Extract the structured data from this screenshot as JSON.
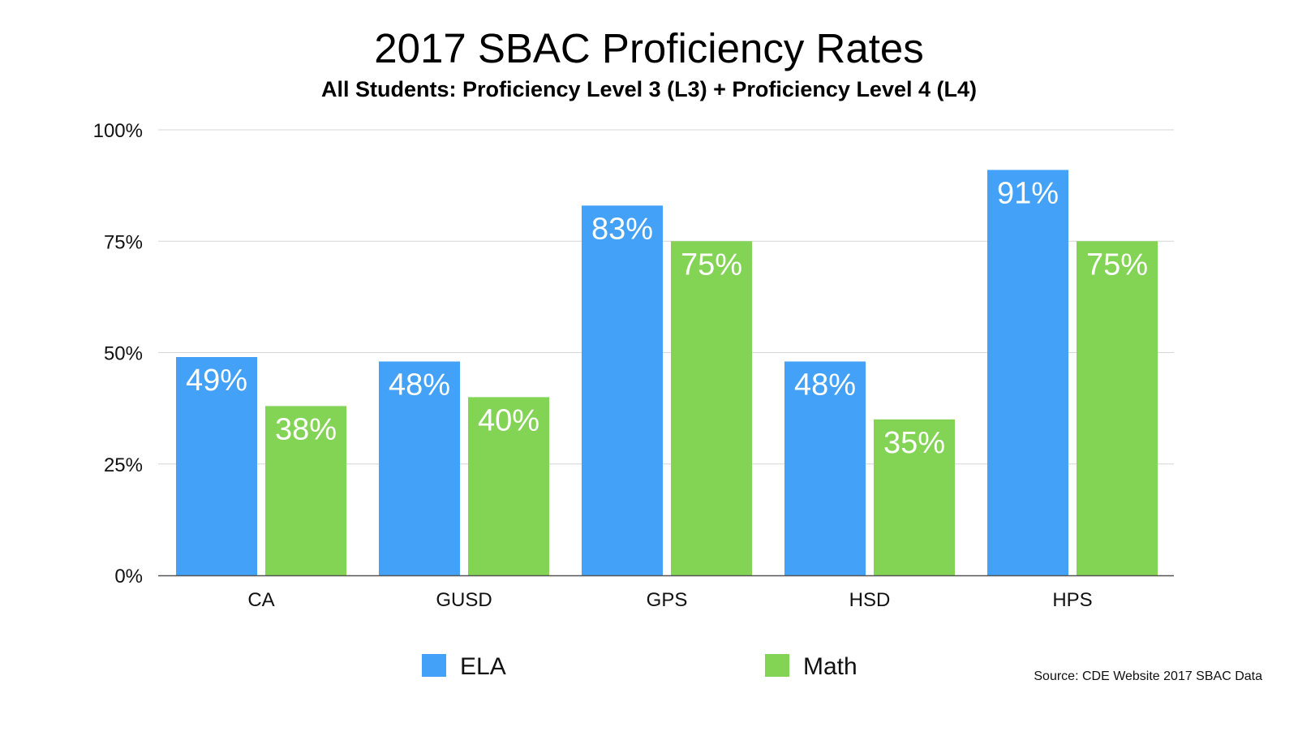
{
  "chart_data": {
    "type": "bar",
    "title": "2017 SBAC Proficiency Rates",
    "subtitle": "All Students: Proficiency Level 3 (L3) + Proficiency Level 4 (L4)",
    "categories": [
      "CA",
      "GUSD",
      "GPS",
      "HSD",
      "HPS"
    ],
    "series": [
      {
        "name": "ELA",
        "color": "#43a2f7",
        "values": [
          49,
          48,
          83,
          48,
          91
        ]
      },
      {
        "name": "Math",
        "color": "#83d455",
        "values": [
          38,
          40,
          75,
          35,
          75
        ]
      }
    ],
    "ylim": [
      0,
      100
    ],
    "yticks": [
      0,
      25,
      50,
      75,
      100
    ],
    "ytick_labels": [
      "0%",
      "25%",
      "50%",
      "75%",
      "100%"
    ],
    "value_suffix": "%",
    "xlabel": "",
    "ylabel": "",
    "grid": true,
    "legend_position": "bottom",
    "source": "Source: CDE Website 2017 SBAC Data"
  }
}
